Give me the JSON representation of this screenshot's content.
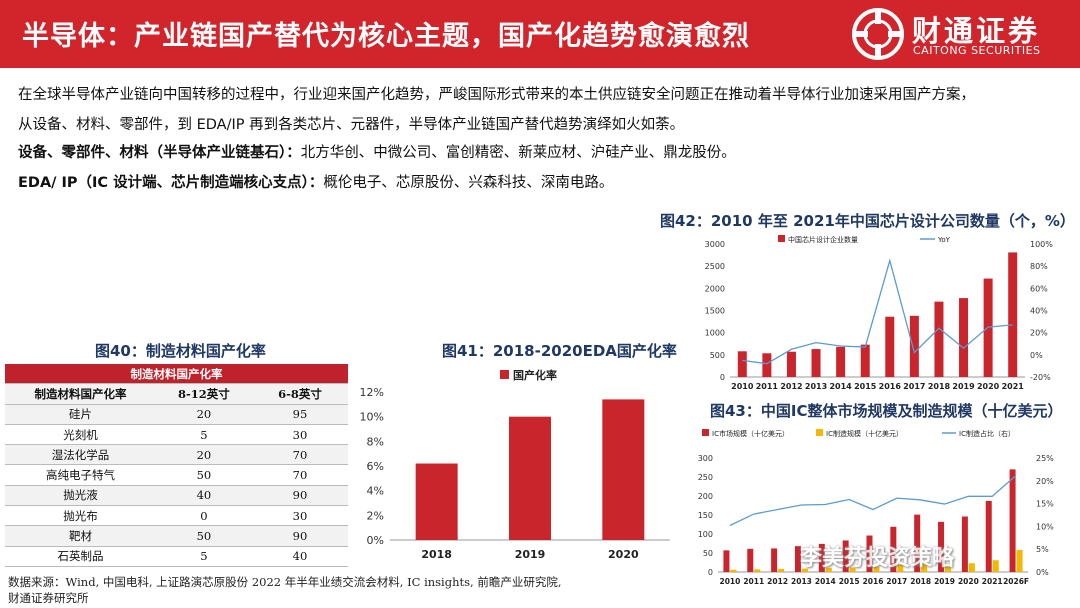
{
  "header": {
    "title": "半导体：产业链国产替代为核心主题，国产化趋势愈演愈烈",
    "logo_cn": "财通证券",
    "logo_en": "CAITONG SECURITIES"
  },
  "intro": {
    "line1": "在全球半导体产业链向中国转移的过程中，行业迎来国产化趋势，严峻国际形式带来的本土供应链安全问题正在推动着半导体行业加速采用国产方案，",
    "line2": "从设备、材料、零部件，到 EDA/IP 再到各类芯片、元器件，半导体产业链国产替代趋势演绎如火如荼。",
    "line3_bold": "设备、零部件、材料（半导体产业链基石）：",
    "line3_rest": "北方华创、中微公司、富创精密、新莱应材、沪硅产业、鼎龙股份。",
    "line4_bold": "EDA/ IP（IC 设计端、芯片制造端核心支点）：",
    "line4_rest": "概伦电子、芯原股份、兴森科技、深南电路。"
  },
  "table40": {
    "title": "图40：制造材料国产化率",
    "header": "制造材料国产化率",
    "columns": [
      "制造材料国产化率",
      "8-12英寸",
      "6-8英寸"
    ],
    "rows": [
      [
        "硅片",
        "20",
        "95"
      ],
      [
        "光刻机",
        "5",
        "30"
      ],
      [
        "湿法化学品",
        "20",
        "70"
      ],
      [
        "高纯电子特气",
        "50",
        "70"
      ],
      [
        "抛光液",
        "40",
        "90"
      ],
      [
        "抛光布",
        "0",
        "30"
      ],
      [
        "靶材",
        "50",
        "90"
      ],
      [
        "石英制品",
        "5",
        "40"
      ]
    ]
  },
  "source": {
    "line1": "数据来源：Wind, 中国电科, 上证路演芯原股份 2022 年半年业绩交流会材料, IC insights, 前瞻产业研究院,",
    "line2": "财通证券研究所"
  },
  "watermark": "李美芬投资策略",
  "colors": {
    "brand_red": "#d1242b",
    "bar_red": "#c9252c",
    "line_blue": "#5b9bd5",
    "yellow": "#f5b800",
    "title_navy": "#1f3864"
  },
  "chart_data": [
    {
      "id": "chart41",
      "type": "bar",
      "title": "图41：2018-2020EDA国产化率",
      "legend": [
        "国产化率"
      ],
      "categories": [
        "2018",
        "2019",
        "2020"
      ],
      "values": [
        6.2,
        10.0,
        11.4
      ],
      "yticks": [
        "0%",
        "2%",
        "4%",
        "6%",
        "8%",
        "10%",
        "12%"
      ],
      "ylim": [
        0,
        12
      ]
    },
    {
      "id": "chart42",
      "type": "bar",
      "title": "图42：2010 年至 2021年中国芯片设计公司数量（个，%）",
      "legend": [
        "中国芯片设计企业数量",
        "YoY"
      ],
      "categories": [
        "2010",
        "2011",
        "2012",
        "2013",
        "2014",
        "2015",
        "2016",
        "2017",
        "2018",
        "2019",
        "2020",
        "2021"
      ],
      "values": [
        580,
        535,
        570,
        630,
        680,
        730,
        1360,
        1380,
        1700,
        1780,
        2220,
        2810
      ],
      "yoy": [
        -5,
        -8,
        5,
        11,
        8,
        7,
        85,
        2,
        24,
        6,
        25,
        27
      ],
      "yticks_left": [
        "0",
        "500",
        "1000",
        "1500",
        "2000",
        "2500",
        "3000"
      ],
      "yticks_right": [
        "-20%",
        "0%",
        "20%",
        "40%",
        "60%",
        "80%",
        "100%"
      ],
      "ylim_left": [
        0,
        3000
      ],
      "ylim_right": [
        -20,
        100
      ]
    },
    {
      "id": "chart43",
      "type": "bar",
      "title": "图43：中国IC整体市场规模及制造规模（十亿美元）",
      "legend": [
        "IC市场规模（十亿美元）",
        "IC制造规模（十亿美元）",
        "IC制造占比（右）"
      ],
      "categories": [
        "2010",
        "2011",
        "2012",
        "2013",
        "2014",
        "2015",
        "2016",
        "2017",
        "2018",
        "2019",
        "2020",
        "2021",
        "2026F"
      ],
      "market": [
        57,
        61,
        62,
        68,
        74,
        83,
        96,
        119,
        151,
        132,
        146,
        187,
        270
      ],
      "manufacturing": [
        6,
        7,
        8,
        9,
        11,
        12,
        13,
        19,
        24,
        20,
        23,
        31,
        58
      ],
      "share": [
        10.2,
        12.7,
        13.7,
        14.7,
        14.8,
        15.9,
        13.7,
        16.2,
        15.8,
        14.9,
        16.6,
        16.6,
        21.2
      ],
      "yticks_left": [
        "0",
        "50",
        "100",
        "150",
        "200",
        "250",
        "300"
      ],
      "yticks_right": [
        "0%",
        "5%",
        "10%",
        "15%",
        "20%",
        "25%"
      ],
      "ylim_left": [
        0,
        300
      ],
      "ylim_right": [
        0,
        25
      ]
    }
  ]
}
